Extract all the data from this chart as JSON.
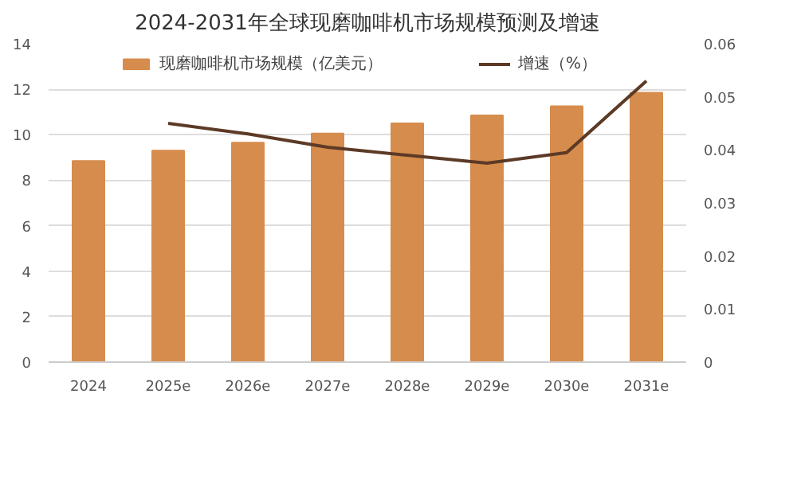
{
  "chart_data": {
    "type": "bar",
    "title": "2024-2031年全球现磨咖啡机市场规模预测及增速",
    "categories": [
      "2024",
      "2025e",
      "2026e",
      "2027e",
      "2028e",
      "2029e",
      "2030e",
      "2031e"
    ],
    "series": [
      {
        "name": "现磨咖啡机市场规模（亿美元）",
        "type": "bar",
        "color": "#d68c4c",
        "values": [
          8.85,
          9.3,
          9.65,
          10.05,
          10.5,
          10.85,
          11.25,
          11.85
        ]
      },
      {
        "name": "增速（%）",
        "type": "line",
        "axis": "y2",
        "color": "#5c3a26",
        "values": [
          null,
          0.045,
          0.043,
          0.0405,
          0.039,
          0.0375,
          0.0395,
          0.053
        ]
      }
    ],
    "ylim": [
      0,
      14
    ],
    "yticks": [
      0,
      2,
      4,
      6,
      8,
      10,
      12,
      14
    ],
    "y2lim": [
      0,
      0.06
    ],
    "y2ticks": [
      0,
      0.01,
      0.02,
      0.03,
      0.04,
      0.05,
      0.06
    ],
    "grid": "y",
    "legend": "top",
    "marker": "none",
    "line_style": "solid"
  }
}
